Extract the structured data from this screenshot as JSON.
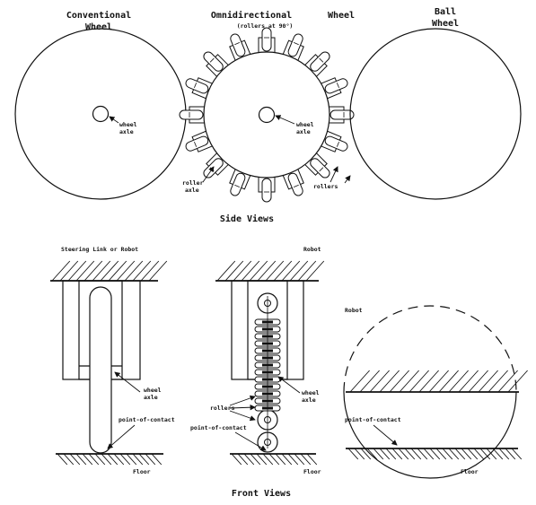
{
  "side_views": {
    "conventional_title_1": "Conventional",
    "conventional_title_2": "Wheel",
    "omni_title_1": "Omnidirectional",
    "omni_title_wheel": "Wheel",
    "omni_subtitle": "(rollers at 90°)",
    "ball_title_1": "Ball",
    "ball_title_2": "Wheel",
    "wheel_axle_1": "wheel",
    "wheel_axle_2": "axle",
    "omni_wheel_axle_1": "wheel",
    "omni_wheel_axle_2": "axle",
    "roller_axle_1": "roller",
    "roller_axle_2": "axle",
    "rollers": "rollers",
    "caption": "Side Views"
  },
  "front_views": {
    "steering_link": "Steering Link or Robot",
    "robot_mid": "Robot",
    "robot_right": "Robot",
    "left_wheel_axle_1": "wheel",
    "left_wheel_axle_2": "axle",
    "mid_wheel_axle_1": "wheel",
    "mid_wheel_axle_2": "axle",
    "rollers": "rollers",
    "poc_left": "point-of-contact",
    "poc_right": "point-of-contact",
    "floor_left": "Floor",
    "floor_mid": "Floor",
    "floor_right": "Floor",
    "caption": "Front Views"
  }
}
